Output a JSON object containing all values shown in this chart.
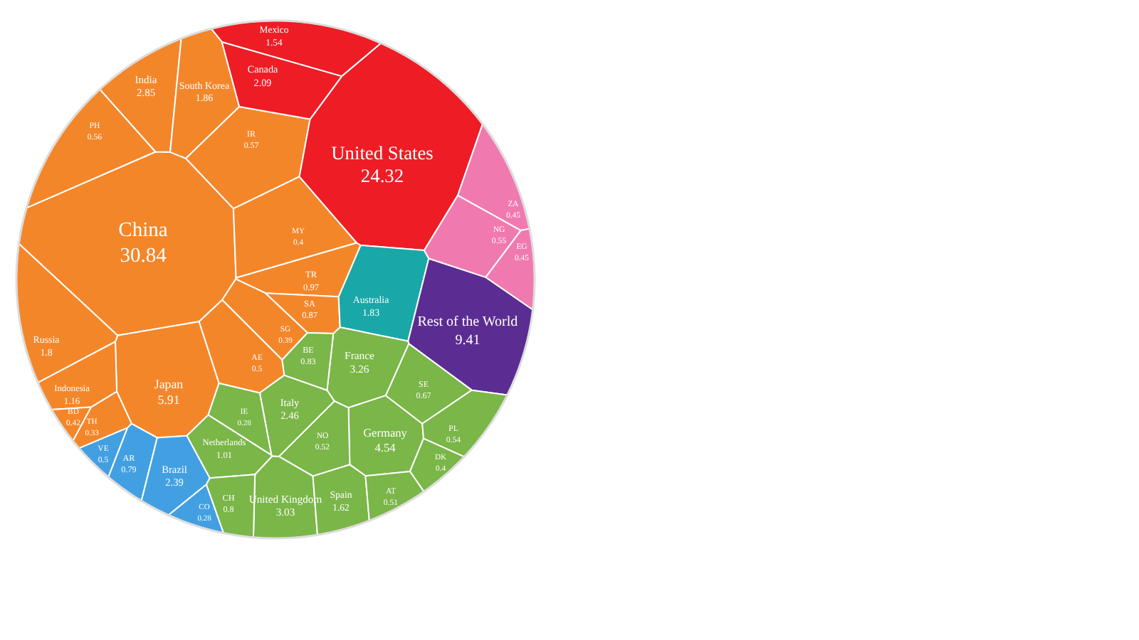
{
  "chart_data": {
    "type": "other",
    "data_labels": true,
    "categories": [
      "China",
      "Japan",
      "India",
      "South Korea",
      "Russia",
      "Indonesia",
      "PH",
      "IR",
      "MY",
      "TR",
      "SA",
      "SG",
      "AE",
      "BD",
      "TH",
      "United States",
      "Canada",
      "Mexico",
      "Australia",
      "Rest of the World",
      "ZA",
      "NG",
      "EG",
      "VE",
      "AR",
      "Brazil",
      "CO",
      "France",
      "Germany",
      "Italy",
      "United Kingdom",
      "Spain",
      "Netherlands",
      "NO",
      "BE",
      "SE",
      "PL",
      "DK",
      "AT",
      "CH",
      "IE"
    ],
    "values": [
      30.84,
      5.91,
      2.85,
      1.86,
      1.8,
      1.16,
      0.56,
      0.57,
      0.4,
      0.97,
      0.87,
      0.39,
      0.5,
      0.42,
      0.33,
      24.32,
      2.09,
      1.54,
      1.83,
      9.41,
      0.45,
      0.55,
      0.45,
      0.5,
      0.79,
      2.39,
      0.28,
      3.26,
      4.54,
      2.46,
      3.03,
      1.62,
      1.01,
      0.52,
      0.83,
      0.67,
      0.54,
      0.4,
      0.51,
      0.8,
      0.28
    ],
    "colors": [
      "#f4862a",
      "#f4862a",
      "#f4862a",
      "#f4862a",
      "#f4862a",
      "#f4862a",
      "#f4862a",
      "#f4862a",
      "#f4862a",
      "#f4862a",
      "#f4862a",
      "#f4862a",
      "#f4862a",
      "#f4862a",
      "#f4862a",
      "#ee1c25",
      "#ee1c25",
      "#ee1c25",
      "#1aa7a8",
      "#5b2d92",
      "#f07ab0",
      "#f07ab0",
      "#f07ab0",
      "#42a0e2",
      "#42a0e2",
      "#42a0e2",
      "#42a0e2",
      "#7ab648",
      "#7ab648",
      "#7ab648",
      "#7ab648",
      "#7ab648",
      "#7ab648",
      "#7ab648",
      "#7ab648",
      "#7ab648",
      "#7ab648",
      "#7ab648",
      "#7ab648",
      "#7ab648",
      "#7ab648"
    ]
  }
}
